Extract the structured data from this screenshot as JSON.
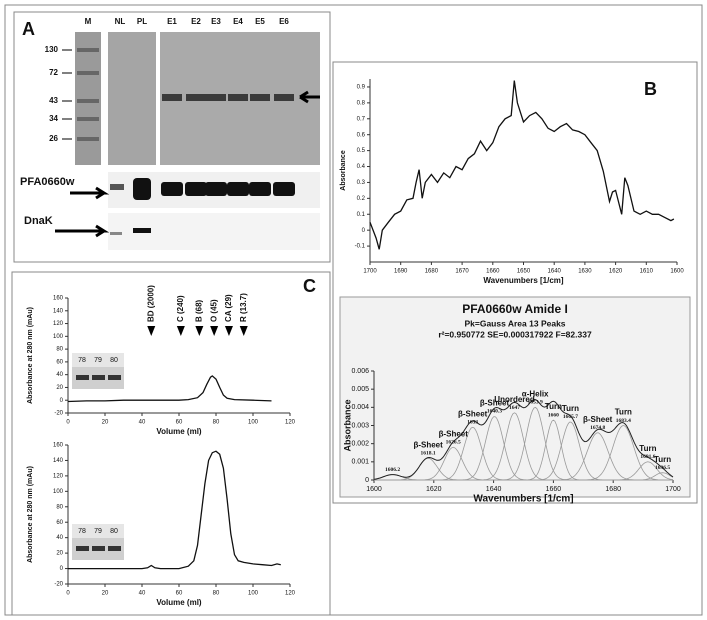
{
  "panel_labels": [
    "A",
    "B",
    "C"
  ],
  "gel": {
    "lanes": [
      "M",
      "NL",
      "PL",
      "E1",
      "E2",
      "E3",
      "E4",
      "E5",
      "E6"
    ],
    "markers": [
      130,
      72,
      43,
      34,
      26
    ],
    "blots": [
      "PFA0660w",
      "DnaK"
    ]
  },
  "chart_data": [
    {
      "type": "line",
      "xlabel": "Wavenumbers [1/cm]",
      "ylabel": "Absorbance",
      "xlim": [
        1700,
        1600
      ],
      "ylim": [
        -0.2,
        0.95
      ],
      "xticks": [
        1700,
        1690,
        1680,
        1670,
        1660,
        1650,
        1640,
        1630,
        1620,
        1610,
        1600
      ],
      "yticks": [
        0.9,
        0.8,
        0.7,
        0.6,
        0.5,
        0.4,
        0.3,
        0.2,
        0.1,
        0,
        -0.1
      ],
      "color": "#111111",
      "x": [
        1700,
        1698,
        1697,
        1696,
        1694,
        1692,
        1690,
        1688,
        1686,
        1685,
        1684,
        1683,
        1682,
        1680,
        1678,
        1676,
        1674,
        1672,
        1670,
        1668,
        1666,
        1664,
        1662,
        1660,
        1658,
        1656,
        1654,
        1653,
        1652,
        1650,
        1648,
        1646,
        1644,
        1642,
        1640,
        1638,
        1636,
        1634,
        1632,
        1630,
        1628,
        1626,
        1624,
        1622,
        1621,
        1620,
        1618,
        1617,
        1616,
        1614,
        1612,
        1610,
        1608,
        1606,
        1604,
        1602,
        1601
      ],
      "values": [
        0.05,
        -0.05,
        -0.12,
        0.0,
        0.05,
        0.1,
        0.12,
        0.19,
        0.2,
        0.3,
        0.38,
        0.2,
        0.3,
        0.35,
        0.3,
        0.36,
        0.33,
        0.4,
        0.38,
        0.45,
        0.48,
        0.56,
        0.5,
        0.55,
        0.65,
        0.7,
        0.72,
        0.94,
        0.8,
        0.68,
        0.72,
        0.74,
        0.7,
        0.64,
        0.62,
        0.65,
        0.67,
        0.63,
        0.62,
        0.6,
        0.55,
        0.5,
        0.37,
        0.18,
        0.24,
        0.25,
        0.1,
        0.33,
        0.28,
        0.12,
        0.1,
        0.12,
        0.1,
        0.1,
        0.08,
        0.06,
        0.07
      ]
    },
    {
      "type": "gaussian-fit",
      "title": "PFA0660w Amide I",
      "subtitle": [
        "Pk=Gauss Area  13 Peaks",
        "r²=0.950772  SE=0.000317922  F=82.337"
      ],
      "xlabel": "Wavenumbers [1/cm]",
      "ylabel": "Absorbance",
      "xlim": [
        1600,
        1700
      ],
      "ylim": [
        0,
        0.006
      ],
      "xticks": [
        1600,
        1620,
        1640,
        1660,
        1680,
        1700
      ],
      "yticks": [
        0,
        0.001,
        0.002,
        0.003,
        0.004,
        0.005,
        0.006
      ],
      "color": "#9a9a9a",
      "fit_color": "#222222",
      "peaks": {
        "x": [
          1606.2,
          1618.1,
          1626.5,
          1633,
          1640.3,
          1647,
          1653.9,
          1660,
          1665.7,
          1674.8,
          1683.4,
          1691.6,
          1696.5
        ],
        "heights": [
          0.0003,
          0.0012,
          0.0018,
          0.0029,
          0.0035,
          0.0037,
          0.004,
          0.0033,
          0.0032,
          0.0026,
          0.003,
          0.001,
          0.0004
        ],
        "widths": [
          3,
          3,
          3,
          3,
          3,
          3,
          3,
          2.5,
          3,
          3.5,
          3.5,
          3,
          2.5
        ],
        "labels": [
          null,
          "β-Sheet",
          "β-Sheet",
          "β-Sheet",
          "β-Sheet",
          "Unordered",
          "α-Helix",
          "Turn",
          "Turn",
          "β-Sheet",
          "Turn",
          "Turn",
          "Turn"
        ]
      }
    },
    {
      "type": "line",
      "xlabel": "Volume (ml)",
      "ylabel": "Absorbance at 280 nm (mAu)",
      "xlim": [
        0,
        120
      ],
      "ylim": [
        -20,
        160
      ],
      "xticks": [
        0,
        20,
        40,
        60,
        80,
        100,
        120
      ],
      "yticks": [
        -20,
        0,
        20,
        40,
        60,
        80,
        100,
        120,
        140,
        160
      ],
      "color": "#111111",
      "annotations": [
        {
          "label": "BD (2000)",
          "x": 45
        },
        {
          "label": "C (240)",
          "x": 61
        },
        {
          "label": "B (68)",
          "x": 71
        },
        {
          "label": "O (45)",
          "x": 79
        },
        {
          "label": "CA (29)",
          "x": 87
        },
        {
          "label": "R (13.7)",
          "x": 95
        }
      ],
      "inset_lanes": [
        78,
        79,
        80
      ],
      "x": [
        0,
        10,
        20,
        30,
        40,
        50,
        60,
        65,
        70,
        73,
        75,
        77,
        78,
        80,
        82,
        84,
        86,
        90,
        100,
        110
      ],
      "values": [
        -2,
        -1,
        -1,
        0,
        0,
        0,
        0,
        1,
        4,
        12,
        25,
        36,
        38,
        33,
        20,
        8,
        3,
        1,
        0,
        -1
      ]
    },
    {
      "type": "line",
      "xlabel": "Volume (ml)",
      "ylabel": "Absorbance at 280 nm (mAu)",
      "xlim": [
        0,
        120
      ],
      "ylim": [
        -20,
        160
      ],
      "xticks": [
        0,
        20,
        40,
        60,
        80,
        100,
        120
      ],
      "yticks": [
        -20,
        0,
        20,
        40,
        60,
        80,
        100,
        120,
        140,
        160
      ],
      "color": "#111111",
      "inset_lanes": [
        78,
        79,
        80
      ],
      "x": [
        0,
        10,
        20,
        30,
        40,
        43,
        45,
        47,
        50,
        60,
        65,
        68,
        70,
        72,
        74,
        76,
        78,
        80,
        82,
        84,
        86,
        88,
        90,
        92,
        95,
        100,
        105,
        110,
        113,
        115
      ],
      "values": [
        0,
        0,
        0,
        0,
        0,
        1,
        4,
        1,
        0,
        0,
        3,
        10,
        30,
        70,
        110,
        140,
        150,
        152,
        148,
        130,
        90,
        45,
        18,
        10,
        8,
        6,
        5,
        4,
        6,
        5
      ]
    }
  ]
}
